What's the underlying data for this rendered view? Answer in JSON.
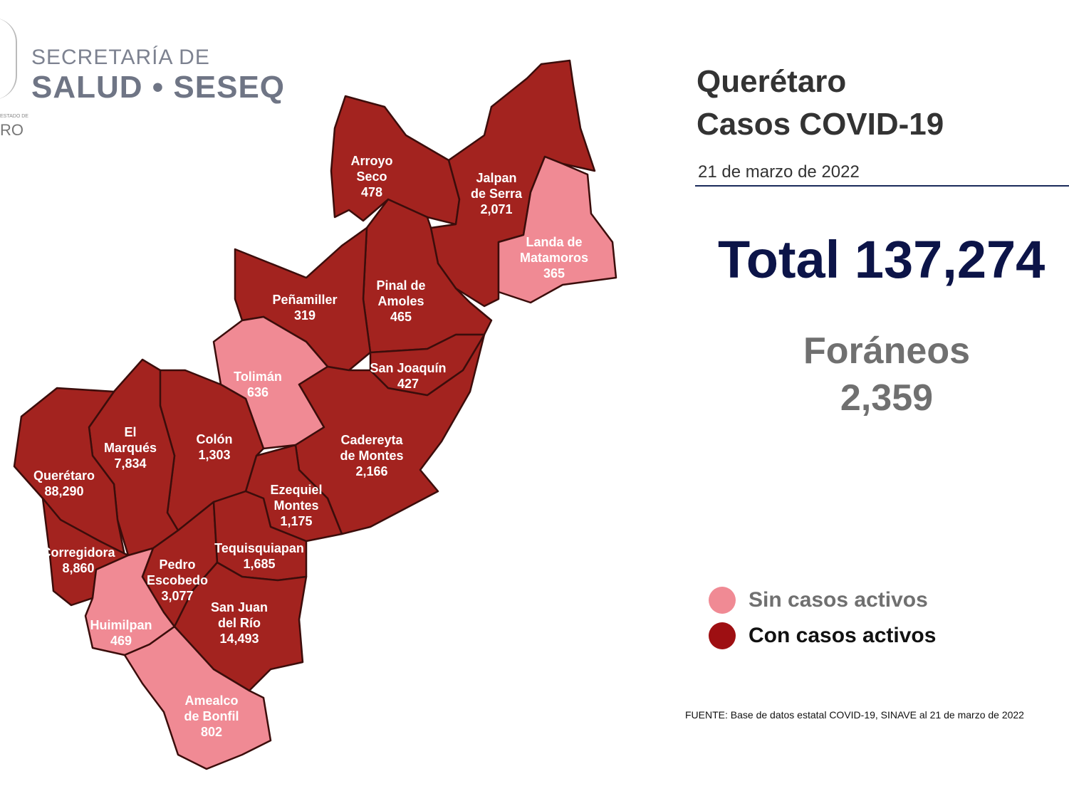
{
  "logo": {
    "line1": "SECRETARÍA DE",
    "line2": "SALUD • SESEQ",
    "state_small": "ESTADO DE",
    "state": "RO"
  },
  "header": {
    "title_line1": "Querétaro",
    "title_line2": "Casos COVID-19",
    "date": "21 de marzo de 2022"
  },
  "total": "Total 137,274",
  "foraneos": {
    "label": "Foráneos",
    "value": "2,359"
  },
  "legend": [
    {
      "label": "Sin casos activos",
      "color": "#f08a94",
      "text_color": "#707070"
    },
    {
      "label": "Con casos activos",
      "color": "#9e0f12",
      "text_color": "#111111"
    }
  ],
  "colors": {
    "active": "#a3231f",
    "inactive": "#f08a94",
    "border": "#3b0d0b"
  },
  "source": "FUENTE: Base de datos estatal  COVID-19,  SINAVE  al 21 de marzo de 2022",
  "municipalities": [
    {
      "id": "arroyo-seco",
      "name": [
        "Arroyo",
        "Seco"
      ],
      "cases": "478",
      "status": "active"
    },
    {
      "id": "jalpan",
      "name": [
        "Jalpan",
        "de Serra"
      ],
      "cases": "2,071",
      "status": "active"
    },
    {
      "id": "landa",
      "name": [
        "Landa de",
        "Matamoros"
      ],
      "cases": "365",
      "status": "inactive"
    },
    {
      "id": "pinal",
      "name": [
        "Pinal de",
        "Amoles"
      ],
      "cases": "465",
      "status": "active"
    },
    {
      "id": "penamiller",
      "name": [
        "Peñamiller"
      ],
      "cases": "319",
      "status": "active"
    },
    {
      "id": "toliman",
      "name": [
        "Tolimán"
      ],
      "cases": "636",
      "status": "inactive"
    },
    {
      "id": "cadereyta",
      "name": [
        "Cadereyta",
        "de Montes"
      ],
      "cases": "2,166",
      "status": "active"
    },
    {
      "id": "san-joaquin",
      "name": [
        "San Joaquín"
      ],
      "cases": "427",
      "status": "active"
    },
    {
      "id": "ezequiel",
      "name": [
        "Ezequiel",
        "Montes"
      ],
      "cases": "1,175",
      "status": "active"
    },
    {
      "id": "colon",
      "name": [
        "Colón"
      ],
      "cases": "1,303",
      "status": "active"
    },
    {
      "id": "el-marques",
      "name": [
        "El",
        "Marqués"
      ],
      "cases": "7,834",
      "status": "active"
    },
    {
      "id": "queretaro",
      "name": [
        "Querétaro"
      ],
      "cases": "88,290",
      "status": "active"
    },
    {
      "id": "corregidora",
      "name": [
        "Corregidora"
      ],
      "cases": "8,860",
      "status": "active"
    },
    {
      "id": "huimilpan",
      "name": [
        "Huimilpan"
      ],
      "cases": "469",
      "status": "inactive"
    },
    {
      "id": "pedro-escobedo",
      "name": [
        "Pedro",
        "Escobedo"
      ],
      "cases": "3,077",
      "status": "active"
    },
    {
      "id": "tequisquiapan",
      "name": [
        "Tequisquiapan"
      ],
      "cases": "1,685",
      "status": "active"
    },
    {
      "id": "san-juan",
      "name": [
        "San Juan",
        "del Río"
      ],
      "cases": "14,493",
      "status": "active"
    },
    {
      "id": "amealco",
      "name": [
        "Amealco",
        "de Bonfil"
      ],
      "cases": "802",
      "status": "inactive"
    }
  ]
}
